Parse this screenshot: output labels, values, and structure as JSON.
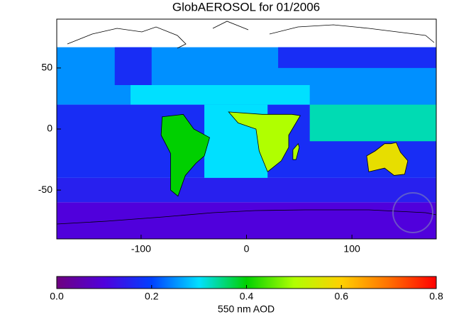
{
  "chart_data": {
    "type": "map",
    "title": "GlobAEROSOL for 01/2006",
    "xlim": [
      -180,
      180
    ],
    "ylim": [
      -90,
      90
    ],
    "xticks": [
      -100,
      0,
      100
    ],
    "yticks": [
      50,
      0,
      -50
    ],
    "regions": [
      {
        "lon": [
          -180,
          180
        ],
        "lat": [
          -90,
          -60
        ],
        "aod": 0.1
      },
      {
        "lon": [
          -180,
          180
        ],
        "lat": [
          -60,
          -40
        ],
        "aod": 0.15
      },
      {
        "lon": [
          -180,
          180
        ],
        "lat": [
          -40,
          20
        ],
        "aod": 0.17
      },
      {
        "lon": [
          -40,
          20
        ],
        "lat": [
          -40,
          20
        ],
        "aod": 0.3
      },
      {
        "lon": [
          60,
          180
        ],
        "lat": [
          -10,
          20
        ],
        "aod": 0.33
      },
      {
        "lon": [
          -180,
          180
        ],
        "lat": [
          20,
          36
        ],
        "aod": 0.25
      },
      {
        "lon": [
          -110,
          60
        ],
        "lat": [
          20,
          36
        ],
        "aod": 0.3
      },
      {
        "lon": [
          -180,
          180
        ],
        "lat": [
          36,
          67
        ],
        "aod": 0.25
      },
      {
        "lon": [
          -125,
          -90
        ],
        "lat": [
          36,
          67
        ],
        "aod": 0.17
      },
      {
        "lon": [
          30,
          180
        ],
        "lat": [
          50,
          67
        ],
        "aod": 0.17
      },
      {
        "outline": [
          [
            -80,
            10
          ],
          [
            -60,
            12
          ],
          [
            -50,
            0
          ],
          [
            -35,
            -7
          ],
          [
            -40,
            -22
          ],
          [
            -48,
            -28
          ],
          [
            -58,
            -38
          ],
          [
            -65,
            -55
          ],
          [
            -72,
            -50
          ],
          [
            -72,
            -20
          ],
          [
            -81,
            -5
          ]
        ],
        "aod": 0.4
      },
      {
        "outline": [
          [
            -17,
            14
          ],
          [
            15,
            12
          ],
          [
            43,
            12
          ],
          [
            51,
            11
          ],
          [
            40,
            -5
          ],
          [
            40,
            -15
          ],
          [
            33,
            -26
          ],
          [
            20,
            -35
          ],
          [
            12,
            -18
          ],
          [
            9,
            0
          ],
          [
            -8,
            5
          ]
        ],
        "aod": 0.5
      },
      {
        "outline": [
          [
            44,
            -25
          ],
          [
            47,
            -25
          ],
          [
            50,
            -15
          ],
          [
            49,
            -12
          ],
          [
            44,
            -17
          ]
        ],
        "aod": 0.5
      },
      {
        "outline": [
          [
            114,
            -22
          ],
          [
            122,
            -18
          ],
          [
            131,
            -12
          ],
          [
            137,
            -12
          ],
          [
            142,
            -11
          ],
          [
            146,
            -19
          ],
          [
            153,
            -26
          ],
          [
            150,
            -37
          ],
          [
            140,
            -38
          ],
          [
            131,
            -32
          ],
          [
            116,
            -35
          ]
        ],
        "aod": 0.57
      }
    ],
    "colorbar": {
      "label": "550 nm AOD",
      "range": [
        0,
        0.8
      ],
      "ticks": [
        {
          "value": 0,
          "label": "0.0"
        },
        0.2,
        0.4,
        0.6,
        0.8
      ],
      "colormap": [
        "#6e0080",
        "#5000dc",
        "#0040ff",
        "#00e0ff",
        "#00d000",
        "#b0ff00",
        "#ffd000",
        "#ff7000",
        "#ff0000"
      ]
    }
  }
}
